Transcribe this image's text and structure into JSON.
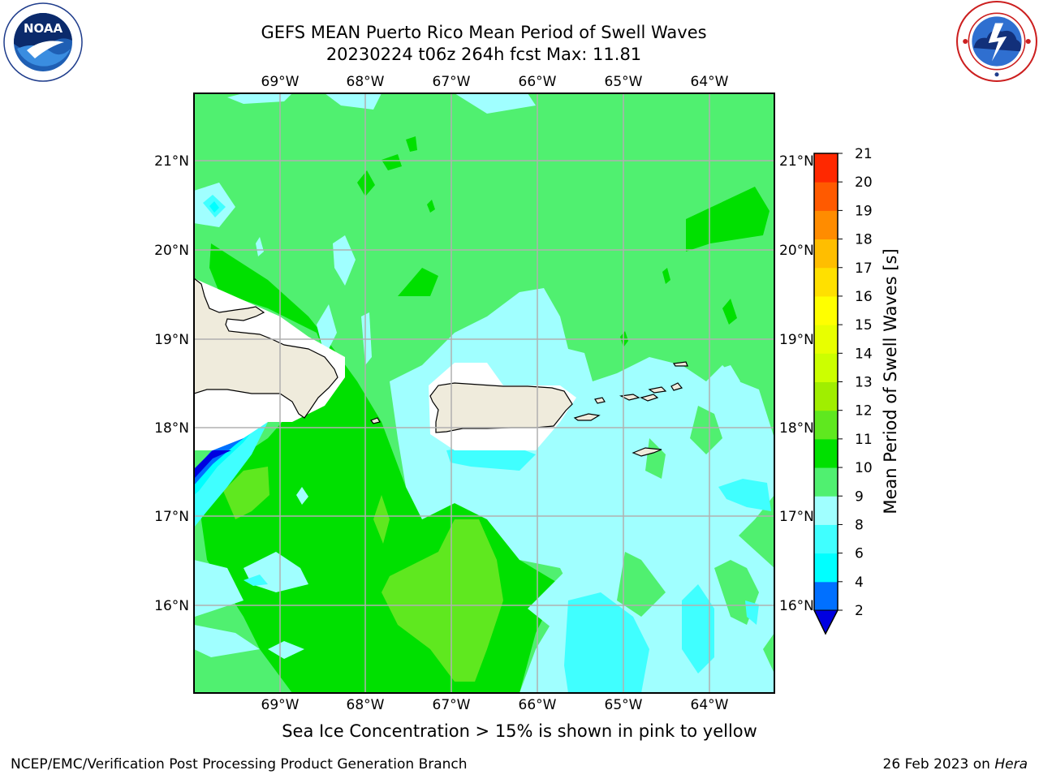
{
  "header": {
    "title_line1": "GEFS MEAN Puerto Rico Mean Period of Swell Waves",
    "title_line2": "20230224 t06z 264h fcst   Max: 11.81"
  },
  "logos": {
    "left": {
      "icon": "noaa-logo",
      "text": "NOAA"
    },
    "right": {
      "icon": "nws-logo"
    }
  },
  "map": {
    "lon_ticks": [
      "69°W",
      "68°W",
      "67°W",
      "66°W",
      "65°W",
      "64°W"
    ],
    "lat_ticks": [
      "21°N",
      "20°N",
      "19°N",
      "18°N",
      "17°N",
      "16°N"
    ],
    "land_color": "#efebdc",
    "grid_color": "#b0b0b0"
  },
  "colorbar": {
    "label": "Mean Period of Swell Waves [s]",
    "ticks": [
      "2",
      "4",
      "6",
      "8",
      "9",
      "10",
      "11",
      "12",
      "13",
      "14",
      "15",
      "16",
      "17",
      "18",
      "19",
      "20",
      "21"
    ],
    "colors": [
      "#0000e0",
      "#0070ff",
      "#00ffff",
      "#40ffff",
      "#a0ffff",
      "#50f070",
      "#00e000",
      "#5fe81f",
      "#a0ee00",
      "#ccff00",
      "#e8ff00",
      "#ffff00",
      "#ffe000",
      "#ffbe00",
      "#ff8c00",
      "#ff5a00",
      "#ff2800",
      "#ff0000"
    ]
  },
  "footnote": "Sea Ice Concentration > 15% is shown in pink to yellow",
  "footer": {
    "left": "NCEP/EMC/Verification Post Processing Product Generation Branch",
    "right_date": "26 Feb 2023 on ",
    "right_host": "Hera"
  }
}
